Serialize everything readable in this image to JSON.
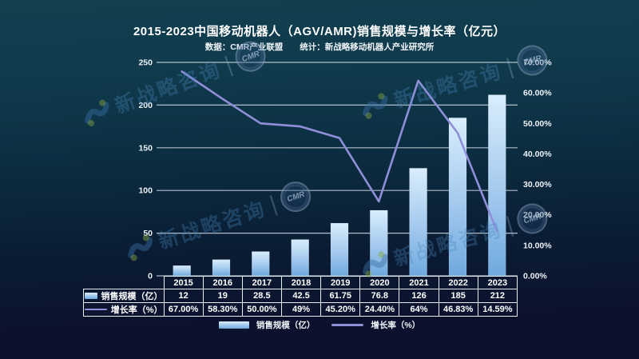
{
  "header": {
    "title": "2015-2023中国移动机器人（AGV/AMR)销售规模与增长率（亿元）",
    "subtitle": "数据：CMR产业联盟　　统计：新战略移动机器人产业研究所"
  },
  "chart_data": {
    "type": "bar+line combo",
    "categories": [
      "2015",
      "2016",
      "2017",
      "2018",
      "2019",
      "2020",
      "2021",
      "2022",
      "2023"
    ],
    "series": [
      {
        "name": "销售规模（亿）",
        "type": "bar",
        "axis": "left",
        "values": [
          12,
          19,
          28.5,
          42.5,
          61.75,
          76.8,
          126,
          185,
          212
        ],
        "display": [
          "12",
          "19",
          "28.5",
          "42.5",
          "61.75",
          "76.8",
          "126",
          "185",
          "212"
        ]
      },
      {
        "name": "增长率（%）",
        "type": "line",
        "axis": "right",
        "values": [
          67.0,
          58.3,
          50.0,
          49,
          45.2,
          24.4,
          64,
          46.83,
          14.59
        ],
        "display": [
          "67.00%",
          "58.30%",
          "50.00%",
          "49%",
          "45.20%",
          "24.40%",
          "64%",
          "46.83%",
          "14.59%"
        ]
      }
    ],
    "left_axis": {
      "ticks": [
        0,
        50,
        100,
        150,
        200,
        250
      ],
      "max": 250
    },
    "right_axis": {
      "ticks": [
        "0.00%",
        "10.00%",
        "20.00%",
        "30.00%",
        "40.00%",
        "50.00%",
        "60.00%",
        "70.00%"
      ],
      "tick_values": [
        0,
        10,
        20,
        30,
        40,
        50,
        60,
        70
      ],
      "max": 70
    },
    "grid": true,
    "legend_position": "bottom"
  },
  "legend": {
    "bar_label": "销售规模（亿）",
    "line_label": "增长率（%）"
  },
  "watermark": {
    "text": "新战略咨询",
    "divider": "|",
    "badge": "CMR"
  },
  "colors": {
    "bar_top": "#d9edfc",
    "bar_mid": "#a3c9ee",
    "bar_bottom": "#6fa9de",
    "line": "#8f8fd9",
    "gridline": "#cdd7e1",
    "text": "#ffffff",
    "bg_top": "#12404f",
    "bg_bottom": "#0d102c"
  }
}
